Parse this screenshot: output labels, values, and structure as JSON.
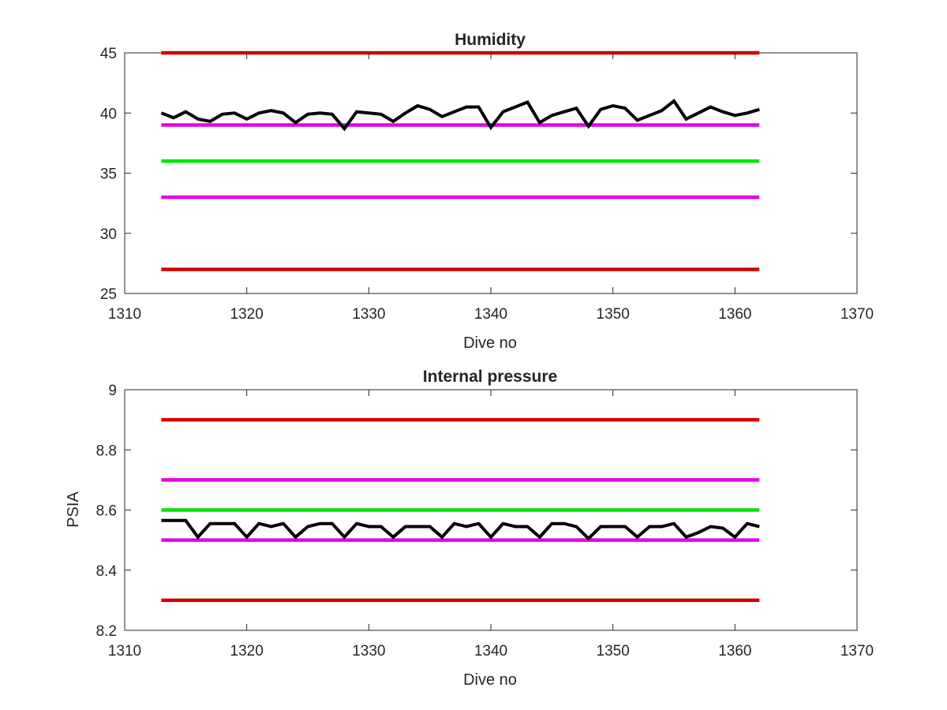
{
  "chart_data": [
    {
      "type": "line",
      "title": "Humidity",
      "xlabel": "Dive no",
      "ylabel": "",
      "xlim": [
        1310,
        1370
      ],
      "ylim": [
        25,
        45
      ],
      "xticks": [
        1310,
        1320,
        1330,
        1340,
        1350,
        1360,
        1370
      ],
      "yticks": [
        25,
        30,
        35,
        40,
        45
      ],
      "grid": false,
      "series": [
        {
          "color": "#d00000",
          "style": "hline",
          "y": 45,
          "x": [
            1313,
            1362
          ]
        },
        {
          "color": "#e600e6",
          "style": "hline",
          "y": 39,
          "x": [
            1313,
            1362
          ]
        },
        {
          "color": "#00e600",
          "style": "hline",
          "y": 36,
          "x": [
            1313,
            1362
          ]
        },
        {
          "color": "#e600e6",
          "style": "hline",
          "y": 33,
          "x": [
            1313,
            1362
          ]
        },
        {
          "color": "#d00000",
          "style": "hline",
          "y": 27,
          "x": [
            1313,
            1362
          ]
        },
        {
          "color": "#000000",
          "style": "data",
          "x": [
            1313,
            1314,
            1315,
            1316,
            1317,
            1318,
            1319,
            1320,
            1321,
            1322,
            1323,
            1324,
            1325,
            1326,
            1327,
            1328,
            1329,
            1330,
            1331,
            1332,
            1333,
            1334,
            1335,
            1336,
            1337,
            1338,
            1339,
            1340,
            1341,
            1342,
            1343,
            1344,
            1345,
            1346,
            1347,
            1348,
            1349,
            1350,
            1351,
            1352,
            1353,
            1354,
            1355,
            1356,
            1357,
            1358,
            1359,
            1360,
            1361,
            1362
          ],
          "y": [
            40.0,
            39.6,
            40.1,
            39.5,
            39.3,
            39.9,
            40.0,
            39.5,
            40.0,
            40.2,
            40.0,
            39.2,
            39.9,
            40.0,
            39.9,
            38.7,
            40.1,
            40.0,
            39.9,
            39.3,
            40.0,
            40.6,
            40.3,
            39.7,
            40.1,
            40.5,
            40.5,
            38.8,
            40.1,
            40.5,
            40.9,
            39.2,
            39.8,
            40.1,
            40.4,
            38.9,
            40.3,
            40.6,
            40.4,
            39.4,
            39.8,
            40.2,
            41.0,
            39.5,
            40.0,
            40.5,
            40.1,
            39.8,
            40.0,
            40.3
          ]
        }
      ]
    },
    {
      "type": "line",
      "title": "Internal pressure",
      "xlabel": "Dive no",
      "ylabel": "PSIA",
      "xlim": [
        1310,
        1370
      ],
      "ylim": [
        8.2,
        9
      ],
      "xticks": [
        1310,
        1320,
        1330,
        1340,
        1350,
        1360,
        1370
      ],
      "yticks": [
        8.2,
        8.4,
        8.6,
        8.8,
        9
      ],
      "grid": false,
      "series": [
        {
          "color": "#d00000",
          "style": "hline",
          "y": 8.9,
          "x": [
            1313,
            1362
          ]
        },
        {
          "color": "#e600e6",
          "style": "hline",
          "y": 8.7,
          "x": [
            1313,
            1362
          ]
        },
        {
          "color": "#00e600",
          "style": "hline",
          "y": 8.6,
          "x": [
            1313,
            1362
          ]
        },
        {
          "color": "#e600e6",
          "style": "hline",
          "y": 8.5,
          "x": [
            1313,
            1362
          ]
        },
        {
          "color": "#d00000",
          "style": "hline",
          "y": 8.3,
          "x": [
            1313,
            1362
          ]
        },
        {
          "color": "#000000",
          "style": "data",
          "x": [
            1313,
            1314,
            1315,
            1316,
            1317,
            1318,
            1319,
            1320,
            1321,
            1322,
            1323,
            1324,
            1325,
            1326,
            1327,
            1328,
            1329,
            1330,
            1331,
            1332,
            1333,
            1334,
            1335,
            1336,
            1337,
            1338,
            1339,
            1340,
            1341,
            1342,
            1343,
            1344,
            1345,
            1346,
            1347,
            1348,
            1349,
            1350,
            1351,
            1352,
            1353,
            1354,
            1355,
            1356,
            1357,
            1358,
            1359,
            1360,
            1361,
            1362
          ],
          "y": [
            8.565,
            8.565,
            8.565,
            8.51,
            8.555,
            8.555,
            8.555,
            8.51,
            8.555,
            8.545,
            8.555,
            8.51,
            8.545,
            8.555,
            8.555,
            8.51,
            8.555,
            8.545,
            8.545,
            8.51,
            8.545,
            8.545,
            8.545,
            8.51,
            8.555,
            8.545,
            8.555,
            8.51,
            8.555,
            8.545,
            8.545,
            8.51,
            8.555,
            8.555,
            8.545,
            8.505,
            8.545,
            8.545,
            8.545,
            8.51,
            8.545,
            8.545,
            8.555,
            8.51,
            8.525,
            8.545,
            8.54,
            8.51,
            8.555,
            8.545
          ]
        }
      ]
    }
  ]
}
